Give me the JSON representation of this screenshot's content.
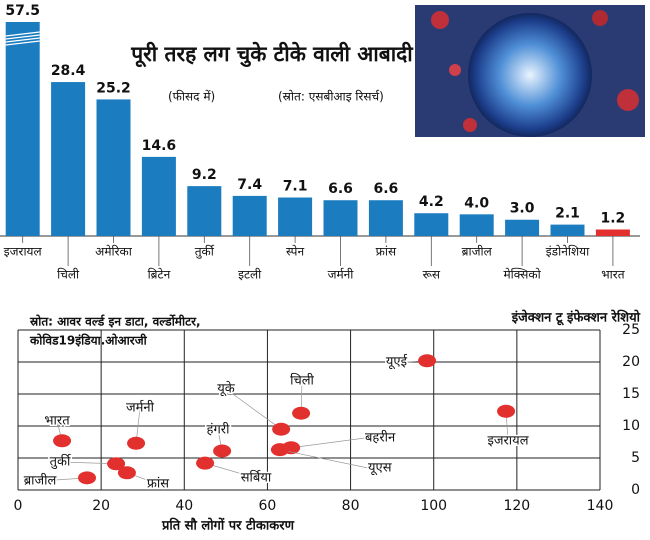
{
  "chart_data": [
    {
      "type": "bar",
      "title": "पूरी तरह लग चुके टीके वाली आबादी",
      "subtitle": "(फीसद में)",
      "source": "(स्रोत: एसबीआइ रिसर्च)",
      "categories": [
        "इजरायल",
        "चिली",
        "अमेरिका",
        "ब्रिटेन",
        "तुर्की",
        "इटली",
        "स्पेन",
        "जर्मनी",
        "फ्रांस",
        "रूस",
        "ब्राजील",
        "मेक्सिको",
        "इंडोनेशिया",
        "भारत"
      ],
      "values": [
        57.5,
        28.4,
        25.2,
        14.6,
        9.2,
        7.4,
        7.1,
        6.6,
        6.6,
        4.2,
        4.0,
        3.0,
        2.1,
        1.2
      ],
      "value_labels": [
        "57.5",
        "28.4",
        "25.2",
        "14.6",
        "9.2",
        "7.4",
        "7.1",
        "6.6",
        "6.6",
        "4.2",
        "4.0",
        "3.0",
        "2.1",
        "1.2"
      ],
      "colors": [
        "#1b7cc0",
        "#1b7cc0",
        "#1b7cc0",
        "#1b7cc0",
        "#1b7cc0",
        "#1b7cc0",
        "#1b7cc0",
        "#1b7cc0",
        "#1b7cc0",
        "#1b7cc0",
        "#1b7cc0",
        "#1b7cc0",
        "#1b7cc0",
        "#e2302f"
      ],
      "axis_break": true
    },
    {
      "type": "scatter",
      "title": "इंजेक्शन टू इंफेक्शन रेशियो",
      "source": [
        "स्रोत: आवर वर्ल्ड इन डाटा, वर्ल्डोमीटर,",
        "कोविड19इंडिया.ओआरजी"
      ],
      "x_label": "प्रति सौ लोगों पर टीकाकरण",
      "color": "#e2302f",
      "xlim": [
        0,
        140
      ],
      "xticks": [
        0,
        20,
        40,
        60,
        80,
        100,
        120,
        140
      ],
      "ylim": [
        0,
        25
      ],
      "yticks": [
        0,
        5,
        10,
        15,
        20,
        25
      ],
      "grid": true,
      "points": [
        {
          "name": "यूएई",
          "x": 98.4,
          "y": 20.2
        },
        {
          "name": "इजरायल",
          "x": 117.4,
          "y": 12.3
        },
        {
          "name": "चिली",
          "x": 68.1,
          "y": 12.0
        },
        {
          "name": "यूके",
          "x": 63.3,
          "y": 9.5
        },
        {
          "name": "बहरीन",
          "x": 65.7,
          "y": 6.6
        },
        {
          "name": "यूएस",
          "x": 63.0,
          "y": 6.3
        },
        {
          "name": "भारत",
          "x": 10.6,
          "y": 7.7
        },
        {
          "name": "जर्मनी",
          "x": 28.4,
          "y": 7.3
        },
        {
          "name": "हंगरी",
          "x": 49.1,
          "y": 6.1
        },
        {
          "name": "सर्बिया",
          "x": 45.0,
          "y": 4.2
        },
        {
          "name": "तुर्की",
          "x": 23.6,
          "y": 4.1
        },
        {
          "name": "फ्रांस",
          "x": 26.2,
          "y": 2.7
        },
        {
          "name": "ब्राजील",
          "x": 16.6,
          "y": 1.9
        }
      ]
    }
  ]
}
